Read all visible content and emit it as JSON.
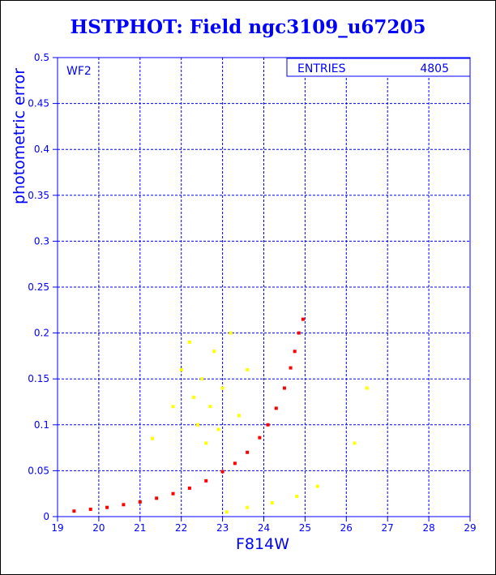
{
  "chart_data": {
    "type": "scatter",
    "title": "HSTPHOT: Field ngc3109_u67205",
    "xlabel": "F814W",
    "ylabel": "photometric error",
    "panel_label": "WF2",
    "stats_box": {
      "label": "ENTRIES",
      "value": "4805"
    },
    "xlim": [
      19,
      29
    ],
    "ylim": [
      0,
      0.5
    ],
    "x_ticks": [
      "19",
      "20",
      "21",
      "22",
      "23",
      "24",
      "25",
      "26",
      "27",
      "28",
      "29"
    ],
    "y_ticks": [
      "0",
      "0.05",
      "0.1",
      "0.15",
      "0.2",
      "0.25",
      "0.3",
      "0.35",
      "0.4",
      "0.45",
      "0.5"
    ],
    "grid": true,
    "series": [
      {
        "color": "#ff0000",
        "description_points": "main error-magnitude sequence",
        "points": [
          [
            19.4,
            0.006
          ],
          [
            19.8,
            0.008
          ],
          [
            20.2,
            0.01
          ],
          [
            20.6,
            0.013
          ],
          [
            21.0,
            0.016
          ],
          [
            21.4,
            0.02
          ],
          [
            21.8,
            0.025
          ],
          [
            22.2,
            0.031
          ],
          [
            22.6,
            0.039
          ],
          [
            23.0,
            0.049
          ],
          [
            23.3,
            0.058
          ],
          [
            23.6,
            0.07
          ],
          [
            23.9,
            0.086
          ],
          [
            24.1,
            0.1
          ],
          [
            24.3,
            0.118
          ],
          [
            24.5,
            0.14
          ],
          [
            24.65,
            0.162
          ],
          [
            24.75,
            0.18
          ],
          [
            24.85,
            0.2
          ],
          [
            24.95,
            0.215
          ]
        ]
      },
      {
        "color": "#ffff00",
        "points": [
          [
            21.3,
            0.085
          ],
          [
            21.8,
            0.12
          ],
          [
            22.0,
            0.16
          ],
          [
            22.2,
            0.19
          ],
          [
            22.3,
            0.13
          ],
          [
            22.4,
            0.1
          ],
          [
            22.5,
            0.15
          ],
          [
            22.6,
            0.08
          ],
          [
            22.7,
            0.12
          ],
          [
            22.8,
            0.18
          ],
          [
            22.9,
            0.095
          ],
          [
            23.0,
            0.14
          ],
          [
            23.2,
            0.2
          ],
          [
            23.4,
            0.11
          ],
          [
            23.6,
            0.16
          ],
          [
            23.1,
            0.005
          ],
          [
            23.6,
            0.01
          ],
          [
            24.2,
            0.015
          ],
          [
            24.8,
            0.022
          ],
          [
            25.3,
            0.033
          ],
          [
            26.2,
            0.08
          ],
          [
            26.5,
            0.14
          ]
        ]
      }
    ]
  }
}
